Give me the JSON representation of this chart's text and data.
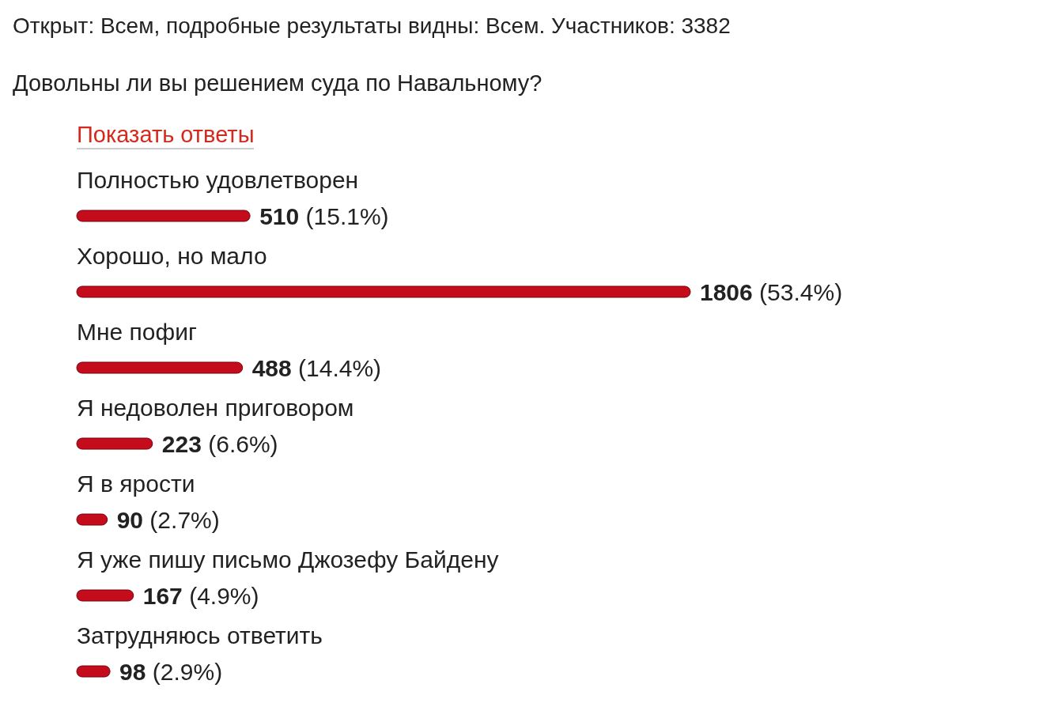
{
  "chart_data": {
    "type": "bar",
    "orientation": "horizontal",
    "title": "Открыт: Всем, подробные результаты видны: Всем. Участников: 3382",
    "subtitle": "Довольны ли вы решением суда по Навальному?",
    "annotations": [
      "Показать ответы"
    ],
    "categories": [
      "Полностью удовлетворен",
      "Хорошо, но мало",
      "Мне пофиг",
      "Я недоволен приговором",
      "Я в ярости",
      "Я уже пишу письмо Джозефу Байдену",
      "Затрудняюсь ответить"
    ],
    "values": [
      510,
      1806,
      488,
      223,
      90,
      167,
      98
    ],
    "value_labels": [
      "510 (15.1%)",
      "1806 (53.4%)",
      "488 (14.4%)",
      "223 (6.6%)",
      "90 (2.7%)",
      "167 (4.9%)",
      "98 (2.9%)"
    ],
    "color": "#c40c1c"
  }
}
